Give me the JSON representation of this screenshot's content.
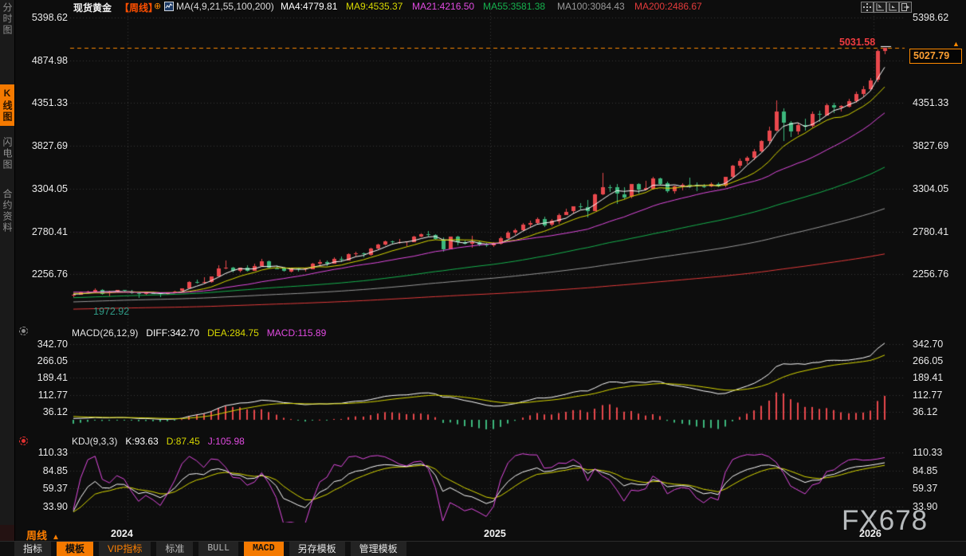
{
  "header": {
    "symbol": "现货黄金",
    "period_tag": "【周线】",
    "plus_icon": "⊕",
    "ma_label": "MA(4,9,21,55,100,200)",
    "ma_values": [
      {
        "label": "MA4:4779.81",
        "color": "#ffffff"
      },
      {
        "label": "MA9:4535.37",
        "color": "#d8d800"
      },
      {
        "label": "MA21:4216.50",
        "color": "#e14be1"
      },
      {
        "label": "MA55:3581.38",
        "color": "#16b24e"
      },
      {
        "label": "MA100:3084.43",
        "color": "#999999"
      },
      {
        "label": "MA200:2486.67",
        "color": "#e23b3b"
      }
    ]
  },
  "sidebar": {
    "items": [
      {
        "label": "分时图",
        "active": false
      },
      {
        "label": "K线图",
        "active": true
      },
      {
        "label": "闪电图",
        "active": false
      },
      {
        "label": "合约资料",
        "active": false
      }
    ]
  },
  "axes": {
    "main": [
      "5398.62",
      "4874.98",
      "4351.33",
      "3827.69",
      "3304.05",
      "2780.41",
      "2256.76"
    ],
    "macd": [
      "342.70",
      "266.05",
      "189.41",
      "112.77",
      "36.12"
    ],
    "kdj": [
      "110.33",
      "84.85",
      "59.37",
      "33.90"
    ],
    "years": [
      "2024",
      "2025",
      "2026"
    ]
  },
  "markers": {
    "high_label": "5031.58",
    "last_price": "5027.79",
    "last_price_arrow": "▲",
    "low_label": "1972.92"
  },
  "macd_header": {
    "title": "MACD(26,12,9)",
    "diff": "DIFF:342.70",
    "dea": "DEA:284.75",
    "macd": "MACD:115.89"
  },
  "kdj_header": {
    "title": "KDJ(9,3,3)",
    "k": "K:93.63",
    "d": "D:87.45",
    "j": "J:105.98"
  },
  "footer": {
    "period": "周线",
    "period_arrow": "▲",
    "tabs": [
      {
        "label": "指标"
      },
      {
        "label": "模板"
      },
      {
        "label": "VIP指标"
      },
      {
        "label": "标准"
      },
      {
        "label": "BULL"
      },
      {
        "label": "MACD"
      },
      {
        "label": "另存模板"
      },
      {
        "label": "管理模板"
      }
    ]
  },
  "watermark": "FX678",
  "colors": {
    "background": "#0d0d0d",
    "grid": "#3a3a3a",
    "accent_orange": "#ff8a00",
    "up": "#e9484d",
    "down": "#3db77d",
    "diff_line": "#ffffff",
    "dea_line": "#d8d800",
    "macd_value": "#e14be1",
    "k_line": "#ffffff",
    "d_line": "#d8d800",
    "j_line": "#e14be1",
    "ma_colors": [
      "#ffffff",
      "#d8d800",
      "#e14be1",
      "#16b24e",
      "#999999",
      "#e23b3b"
    ]
  },
  "chart_data": {
    "type": "candlestick",
    "symbol": "现货黄金",
    "interval": "weekly",
    "title": "现货黄金 周线 (Spot Gold Weekly)",
    "price_ticks": [
      5398.62,
      4874.98,
      4351.33,
      3827.69,
      3304.05,
      2780.41,
      2256.76
    ],
    "macd_ticks": [
      342.7,
      266.05,
      189.41,
      112.77,
      36.12
    ],
    "kdj_ticks": [
      110.33,
      84.85,
      59.37,
      33.9
    ],
    "high_marker": 5031.58,
    "last_close": 5027.79,
    "low_marker": 1972.92,
    "ma_periods": [
      4,
      9,
      21,
      55,
      100,
      200
    ],
    "indicators": {
      "macd_params": [
        26,
        12,
        9
      ],
      "kdj_params": [
        9,
        3,
        3
      ]
    },
    "year_ticks": [
      {
        "label": "2024",
        "index": 7.5
      },
      {
        "label": "2025",
        "index": 57.5
      },
      {
        "label": "2026",
        "index": 110.5
      }
    ],
    "candles": [
      [
        1996,
        2020,
        1978,
        2009
      ],
      [
        2009,
        2045,
        2004,
        2038
      ],
      [
        2038,
        2052,
        2022,
        2046
      ],
      [
        2046,
        2088,
        2032,
        2071
      ],
      [
        2071,
        2080,
        2010,
        2025
      ],
      [
        2025,
        2052,
        1987,
        2043
      ],
      [
        2043,
        2067,
        2038,
        2062
      ],
      [
        2062,
        2071,
        2042,
        2049
      ],
      [
        2049,
        2063,
        2013,
        2029
      ],
      [
        2029,
        2039,
        1972.92,
        2018
      ],
      [
        2018,
        2046,
        2007,
        2040
      ],
      [
        2040,
        2044,
        2016,
        2024
      ],
      [
        2024,
        2031,
        1984,
        2013
      ],
      [
        2013,
        2041,
        2008,
        2035
      ],
      [
        2035,
        2055,
        2025,
        2048
      ],
      [
        2048,
        2088,
        2042,
        2082
      ],
      [
        2082,
        2170,
        2078,
        2160
      ],
      [
        2160,
        2195,
        2145,
        2156
      ],
      [
        2156,
        2222,
        2146,
        2165
      ],
      [
        2165,
        2236,
        2155,
        2233
      ],
      [
        2233,
        2365,
        2228,
        2330
      ],
      [
        2330,
        2431,
        2319,
        2344
      ],
      [
        2344,
        2352,
        2280,
        2302
      ],
      [
        2302,
        2340,
        2277,
        2338
      ],
      [
        2338,
        2368,
        2294,
        2302
      ],
      [
        2302,
        2390,
        2300,
        2360
      ],
      [
        2360,
        2450,
        2355,
        2415
      ],
      [
        2415,
        2425,
        2327,
        2334
      ],
      [
        2334,
        2365,
        2315,
        2327
      ],
      [
        2327,
        2340,
        2287,
        2294
      ],
      [
        2294,
        2341,
        2286,
        2333
      ],
      [
        2333,
        2340,
        2293,
        2322
      ],
      [
        2322,
        2336,
        2290,
        2327
      ],
      [
        2327,
        2395,
        2320,
        2392
      ],
      [
        2392,
        2432,
        2350,
        2411
      ],
      [
        2411,
        2425,
        2360,
        2387
      ],
      [
        2387,
        2462,
        2380,
        2443
      ],
      [
        2443,
        2477,
        2410,
        2431
      ],
      [
        2431,
        2515,
        2425,
        2508
      ],
      [
        2508,
        2532,
        2475,
        2512
      ],
      [
        2512,
        2529,
        2472,
        2503
      ],
      [
        2503,
        2586,
        2485,
        2578
      ],
      [
        2578,
        2630,
        2560,
        2622
      ],
      [
        2622,
        2672,
        2615,
        2658
      ],
      [
        2658,
        2669,
        2632,
        2648
      ],
      [
        2648,
        2686,
        2625,
        2654
      ],
      [
        2654,
        2663,
        2605,
        2657
      ],
      [
        2657,
        2726,
        2650,
        2721
      ],
      [
        2721,
        2758,
        2708,
        2747
      ],
      [
        2747,
        2790,
        2720,
        2734
      ],
      [
        2734,
        2748,
        2675,
        2684
      ],
      [
        2684,
        2710,
        2536,
        2563
      ],
      [
        2563,
        2720,
        2560,
        2716
      ],
      [
        2716,
        2726,
        2605,
        2650
      ],
      [
        2650,
        2666,
        2613,
        2633
      ],
      [
        2633,
        2726,
        2583,
        2648
      ],
      [
        2648,
        2660,
        2605,
        2622
      ],
      [
        2622,
        2640,
        2596,
        2608
      ],
      [
        2608,
        2650,
        2590,
        2639
      ],
      [
        2639,
        2722,
        2620,
        2703
      ],
      [
        2703,
        2786,
        2690,
        2771
      ],
      [
        2771,
        2812,
        2738,
        2797
      ],
      [
        2797,
        2882,
        2780,
        2861
      ],
      [
        2861,
        2910,
        2830,
        2883
      ],
      [
        2883,
        2956,
        2865,
        2936
      ],
      [
        2936,
        2960,
        2832,
        2858
      ],
      [
        2858,
        2930,
        2840,
        2910
      ],
      [
        2910,
        3005,
        2880,
        2984
      ],
      [
        2984,
        3058,
        2980,
        3022
      ],
      [
        3022,
        3090,
        3000,
        3085
      ],
      [
        3085,
        3128,
        3054,
        3082
      ],
      [
        3082,
        3168,
        2957,
        3038
      ],
      [
        3038,
        3245,
        3030,
        3238
      ],
      [
        3238,
        3500,
        3230,
        3327
      ],
      [
        3327,
        3348,
        3260,
        3320
      ],
      [
        3320,
        3365,
        3120,
        3240
      ],
      [
        3240,
        3326,
        3180,
        3203
      ],
      [
        3203,
        3366,
        3195,
        3358
      ],
      [
        3358,
        3372,
        3245,
        3290
      ],
      [
        3290,
        3404,
        3285,
        3310
      ],
      [
        3310,
        3452,
        3295,
        3432
      ],
      [
        3432,
        3440,
        3340,
        3368
      ],
      [
        3368,
        3395,
        3255,
        3274
      ],
      [
        3274,
        3345,
        3248,
        3337
      ],
      [
        3337,
        3375,
        3283,
        3356
      ],
      [
        3356,
        3440,
        3310,
        3350
      ],
      [
        3350,
        3380,
        3268,
        3337
      ],
      [
        3337,
        3362,
        3311,
        3336
      ],
      [
        3336,
        3380,
        3320,
        3363
      ],
      [
        3363,
        3385,
        3322,
        3336
      ],
      [
        3336,
        3452,
        3330,
        3448
      ],
      [
        3448,
        3600,
        3440,
        3587
      ],
      [
        3587,
        3674,
        3555,
        3643
      ],
      [
        3643,
        3707,
        3610,
        3685
      ],
      [
        3685,
        3790,
        3655,
        3760
      ],
      [
        3760,
        3897,
        3750,
        3887
      ],
      [
        3887,
        4060,
        3855,
        4018
      ],
      [
        4018,
        4381,
        4000,
        4251
      ],
      [
        4251,
        4290,
        3886,
        4113
      ],
      [
        4113,
        4130,
        3931,
        4002
      ],
      [
        4002,
        4110,
        3960,
        4081
      ],
      [
        4081,
        4160,
        4018,
        4065
      ],
      [
        4065,
        4245,
        4050,
        4215
      ],
      [
        4215,
        4260,
        4120,
        4204
      ],
      [
        4204,
        4345,
        4195,
        4330
      ],
      [
        4330,
        4352,
        4230,
        4298
      ],
      [
        4298,
        4330,
        4250,
        4316
      ],
      [
        4316,
        4400,
        4290,
        4380
      ],
      [
        4380,
        4494,
        4360,
        4465
      ],
      [
        4465,
        4560,
        4420,
        4520
      ],
      [
        4520,
        4660,
        4505,
        4630
      ],
      [
        4630,
        5010,
        4615,
        4985
      ],
      [
        4985,
        5031.58,
        4958,
        5027.79
      ]
    ]
  }
}
